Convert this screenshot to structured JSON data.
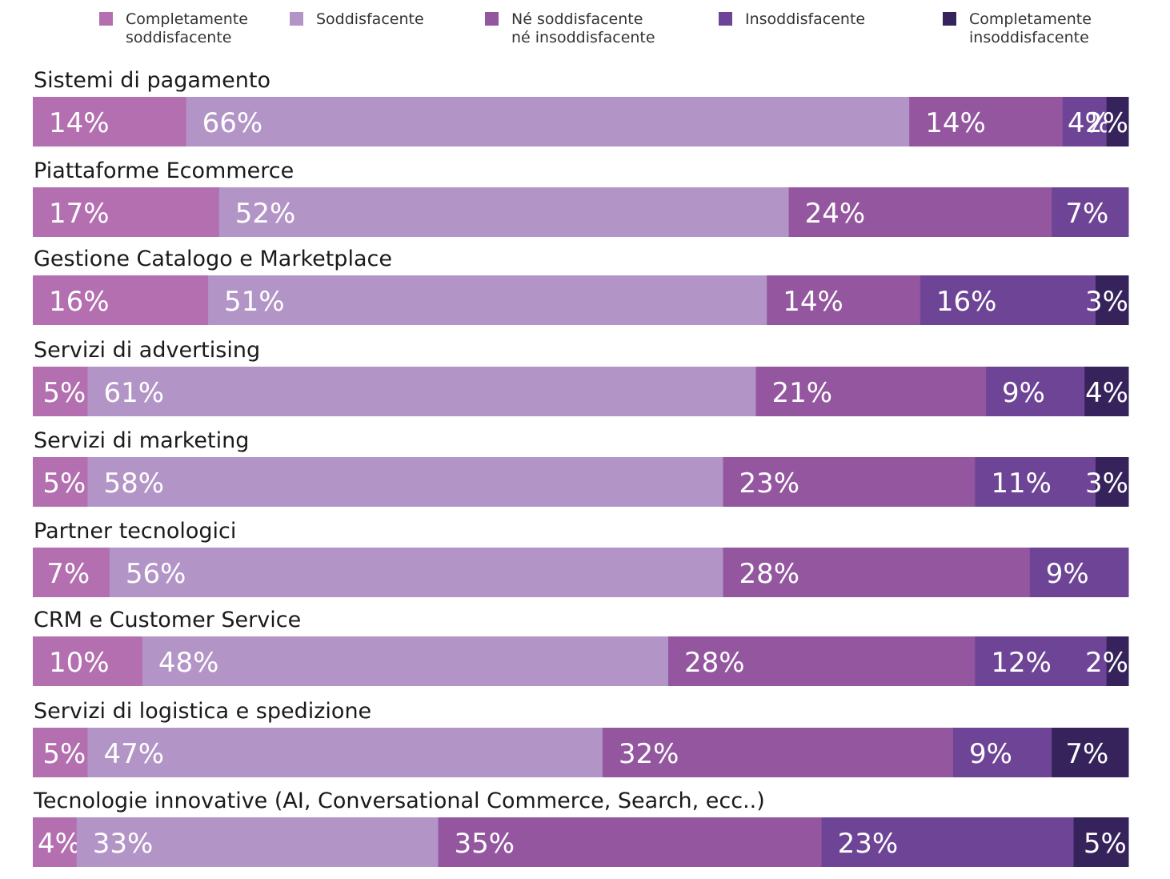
{
  "chart_data": {
    "type": "bar",
    "orientation": "horizontal",
    "stacked": true,
    "normalized": true,
    "unit": "%",
    "title": "",
    "xlabel": "",
    "ylabel": "",
    "xlim": [
      0,
      100
    ],
    "legend_position": "top",
    "categories": [
      "Sistemi di pagamento",
      "Piattaforme Ecommerce",
      "Gestione Catalogo e Marketplace",
      "Servizi di advertising",
      "Servizi di marketing",
      "Partner tecnologici",
      "CRM e Customer Service",
      "Servizi di logistica e spedizione",
      "Tecnologie innovative (AI, Conversational Commerce, Search, ecc..)"
    ],
    "series": [
      {
        "name": "Completamente soddisfacente",
        "legend_lines": [
          "Completamente",
          "soddisfacente"
        ],
        "color": "#b36faf",
        "values": [
          14,
          17,
          16,
          5,
          5,
          7,
          10,
          5,
          4
        ]
      },
      {
        "name": "Soddisfacente",
        "legend_lines": [
          "Soddisfacente"
        ],
        "color": "#b394c6",
        "values": [
          66,
          52,
          51,
          61,
          58,
          56,
          48,
          47,
          33
        ]
      },
      {
        "name": "Né soddisfacente né insoddisfacente",
        "legend_lines": [
          "Né soddisfacente",
          "né insoddisfacente"
        ],
        "color": "#93569f",
        "values": [
          14,
          24,
          14,
          21,
          23,
          28,
          28,
          32,
          35
        ]
      },
      {
        "name": "Insoddisfacente",
        "legend_lines": [
          "Insoddisfacente"
        ],
        "color": "#6e4596",
        "values": [
          4,
          7,
          16,
          9,
          11,
          9,
          12,
          9,
          23
        ]
      },
      {
        "name": "Completamente insoddisfacente",
        "legend_lines": [
          "Completamente",
          "insoddisfacente"
        ],
        "color": "#36235c",
        "values": [
          2,
          0,
          3,
          4,
          3,
          0,
          2,
          7,
          5
        ]
      }
    ]
  }
}
